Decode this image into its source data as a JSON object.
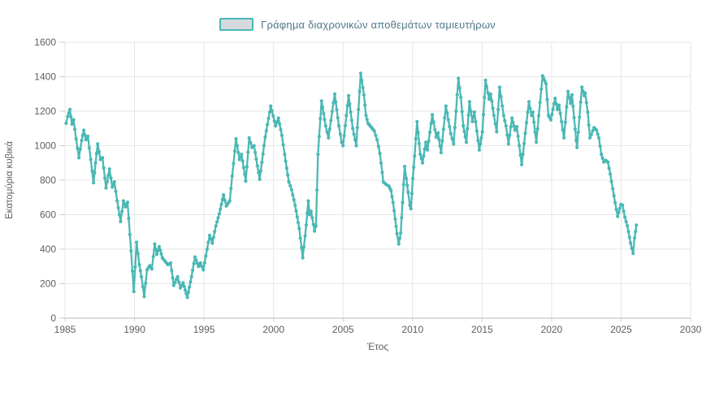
{
  "legend": {
    "label": "Γράφημα διαχρονικών αποθεμάτων ταμιευτήρων"
  },
  "colors": {
    "line": "#4ab8b4",
    "marker": "#4ab8b4",
    "legend_swatch_fill": "#d6dade",
    "legend_swatch_border": "#4ab8b4",
    "legend_text": "#50798c",
    "axis_text": "#5e5e5e",
    "grid": "#e6e6e6",
    "axis_line": "#b8b8b8",
    "tick": "#cccccc"
  },
  "chart_data": {
    "type": "line",
    "title": "Γράφημα διαχρονικών αποθεμάτων ταμιευτήρων",
    "xlabel": "Έτος",
    "ylabel": "Εκατομύρια κυβικά",
    "xlim": [
      1985,
      2030
    ],
    "ylim": [
      0,
      1600
    ],
    "x_ticks": [
      1985,
      1990,
      1995,
      2000,
      2005,
      2010,
      2015,
      2020,
      2025,
      2030
    ],
    "y_ticks": [
      0,
      200,
      400,
      600,
      800,
      1000,
      1200,
      1400,
      1600
    ],
    "grid": true,
    "legend_position": "top",
    "series": [
      {
        "name": "Γράφημα διαχρονικών αποθεμάτων ταμιευτήρων",
        "marker": "circle",
        "points": [
          [
            1985.08,
            1130
          ],
          [
            1985.2,
            1170
          ],
          [
            1985.35,
            1210
          ],
          [
            1985.5,
            1125
          ],
          [
            1985.62,
            1150
          ],
          [
            1985.8,
            1040
          ],
          [
            1986.0,
            930
          ],
          [
            1986.2,
            1030
          ],
          [
            1986.35,
            1090
          ],
          [
            1986.5,
            1035
          ],
          [
            1986.65,
            1055
          ],
          [
            1986.85,
            920
          ],
          [
            1987.05,
            785
          ],
          [
            1987.2,
            900
          ],
          [
            1987.35,
            1010
          ],
          [
            1987.55,
            920
          ],
          [
            1987.7,
            930
          ],
          [
            1987.95,
            755
          ],
          [
            1988.2,
            865
          ],
          [
            1988.4,
            760
          ],
          [
            1988.55,
            790
          ],
          [
            1988.75,
            680
          ],
          [
            1989.0,
            560
          ],
          [
            1989.2,
            680
          ],
          [
            1989.35,
            645
          ],
          [
            1989.5,
            672
          ],
          [
            1989.75,
            390
          ],
          [
            1989.95,
            155
          ],
          [
            1990.15,
            440
          ],
          [
            1990.35,
            310
          ],
          [
            1990.5,
            240
          ],
          [
            1990.7,
            125
          ],
          [
            1990.9,
            280
          ],
          [
            1991.1,
            305
          ],
          [
            1991.25,
            285
          ],
          [
            1991.45,
            430
          ],
          [
            1991.6,
            370
          ],
          [
            1991.78,
            415
          ],
          [
            1992.0,
            350
          ],
          [
            1992.2,
            330
          ],
          [
            1992.4,
            310
          ],
          [
            1992.6,
            320
          ],
          [
            1992.82,
            190
          ],
          [
            1993.1,
            240
          ],
          [
            1993.3,
            175
          ],
          [
            1993.5,
            205
          ],
          [
            1993.8,
            120
          ],
          [
            1994.1,
            240
          ],
          [
            1994.35,
            355
          ],
          [
            1994.6,
            300
          ],
          [
            1994.75,
            320
          ],
          [
            1994.95,
            280
          ],
          [
            1995.4,
            480
          ],
          [
            1995.6,
            435
          ],
          [
            1995.85,
            535
          ],
          [
            1996.1,
            605
          ],
          [
            1996.4,
            715
          ],
          [
            1996.6,
            650
          ],
          [
            1996.85,
            680
          ],
          [
            1997.3,
            1040
          ],
          [
            1997.55,
            920
          ],
          [
            1997.7,
            950
          ],
          [
            1998.0,
            795
          ],
          [
            1998.25,
            1045
          ],
          [
            1998.45,
            990
          ],
          [
            1998.6,
            1000
          ],
          [
            1999.0,
            805
          ],
          [
            1999.4,
            1050
          ],
          [
            1999.8,
            1230
          ],
          [
            2000.15,
            1115
          ],
          [
            2000.35,
            1160
          ],
          [
            2000.6,
            1060
          ],
          [
            2000.8,
            950
          ],
          [
            2001.1,
            790
          ],
          [
            2001.3,
            745
          ],
          [
            2001.55,
            655
          ],
          [
            2001.85,
            520
          ],
          [
            2002.1,
            350
          ],
          [
            2002.35,
            540
          ],
          [
            2002.5,
            680
          ],
          [
            2002.6,
            600
          ],
          [
            2002.7,
            620
          ],
          [
            2002.95,
            505
          ],
          [
            2003.05,
            535
          ],
          [
            2003.2,
            950
          ],
          [
            2003.45,
            1260
          ],
          [
            2003.75,
            1115
          ],
          [
            2003.95,
            1045
          ],
          [
            2004.4,
            1300
          ],
          [
            2004.7,
            1115
          ],
          [
            2004.9,
            1020
          ],
          [
            2005.0,
            1000
          ],
          [
            2005.4,
            1290
          ],
          [
            2005.7,
            1100
          ],
          [
            2005.95,
            1000
          ],
          [
            2006.27,
            1420
          ],
          [
            2006.5,
            1295
          ],
          [
            2006.65,
            1175
          ],
          [
            2006.8,
            1130
          ],
          [
            2007.1,
            1100
          ],
          [
            2007.25,
            1085
          ],
          [
            2007.45,
            1035
          ],
          [
            2007.65,
            955
          ],
          [
            2007.9,
            790
          ],
          [
            2008.1,
            775
          ],
          [
            2008.3,
            765
          ],
          [
            2008.45,
            740
          ],
          [
            2008.6,
            670
          ],
          [
            2008.75,
            575
          ],
          [
            2008.88,
            490
          ],
          [
            2009.0,
            430
          ],
          [
            2009.15,
            495
          ],
          [
            2009.28,
            670
          ],
          [
            2009.43,
            880
          ],
          [
            2009.55,
            810
          ],
          [
            2009.68,
            730
          ],
          [
            2009.8,
            655
          ],
          [
            2009.88,
            635
          ],
          [
            2010.02,
            810
          ],
          [
            2010.15,
            940
          ],
          [
            2010.32,
            1140
          ],
          [
            2010.55,
            950
          ],
          [
            2010.72,
            900
          ],
          [
            2010.95,
            1020
          ],
          [
            2011.07,
            975
          ],
          [
            2011.42,
            1180
          ],
          [
            2011.7,
            1050
          ],
          [
            2011.83,
            1075
          ],
          [
            2012.05,
            960
          ],
          [
            2012.4,
            1230
          ],
          [
            2012.75,
            1070
          ],
          [
            2012.95,
            1010
          ],
          [
            2013.3,
            1390
          ],
          [
            2013.47,
            1280
          ],
          [
            2013.65,
            1115
          ],
          [
            2013.87,
            1020
          ],
          [
            2014.1,
            1255
          ],
          [
            2014.3,
            1140
          ],
          [
            2014.45,
            1195
          ],
          [
            2014.8,
            975
          ],
          [
            2015.02,
            1080
          ],
          [
            2015.25,
            1380
          ],
          [
            2015.5,
            1270
          ],
          [
            2015.62,
            1300
          ],
          [
            2015.85,
            1175
          ],
          [
            2016.05,
            1080
          ],
          [
            2016.26,
            1340
          ],
          [
            2016.55,
            1175
          ],
          [
            2016.72,
            1115
          ],
          [
            2016.9,
            1010
          ],
          [
            2017.15,
            1160
          ],
          [
            2017.37,
            1090
          ],
          [
            2017.5,
            1110
          ],
          [
            2017.85,
            890
          ],
          [
            2018.37,
            1255
          ],
          [
            2018.55,
            1175
          ],
          [
            2018.65,
            1195
          ],
          [
            2018.9,
            1020
          ],
          [
            2019.35,
            1405
          ],
          [
            2019.6,
            1360
          ],
          [
            2019.77,
            1175
          ],
          [
            2019.95,
            1150
          ],
          [
            2020.25,
            1275
          ],
          [
            2020.42,
            1210
          ],
          [
            2020.54,
            1235
          ],
          [
            2020.89,
            1045
          ],
          [
            2021.18,
            1315
          ],
          [
            2021.36,
            1245
          ],
          [
            2021.47,
            1295
          ],
          [
            2021.77,
            1030
          ],
          [
            2021.83,
            990
          ],
          [
            2022.18,
            1340
          ],
          [
            2022.35,
            1290
          ],
          [
            2022.42,
            1305
          ],
          [
            2022.6,
            1195
          ],
          [
            2022.76,
            1045
          ],
          [
            2023.05,
            1105
          ],
          [
            2023.23,
            1090
          ],
          [
            2023.4,
            1045
          ],
          [
            2023.58,
            950
          ],
          [
            2023.75,
            905
          ],
          [
            2023.88,
            915
          ],
          [
            2024.05,
            905
          ],
          [
            2024.22,
            835
          ],
          [
            2024.4,
            750
          ],
          [
            2024.57,
            670
          ],
          [
            2024.75,
            590
          ],
          [
            2024.98,
            660
          ],
          [
            2025.1,
            655
          ],
          [
            2025.27,
            585
          ],
          [
            2025.45,
            535
          ],
          [
            2025.68,
            435
          ],
          [
            2025.86,
            375
          ],
          [
            2025.97,
            465
          ],
          [
            2026.1,
            540
          ]
        ]
      }
    ]
  }
}
